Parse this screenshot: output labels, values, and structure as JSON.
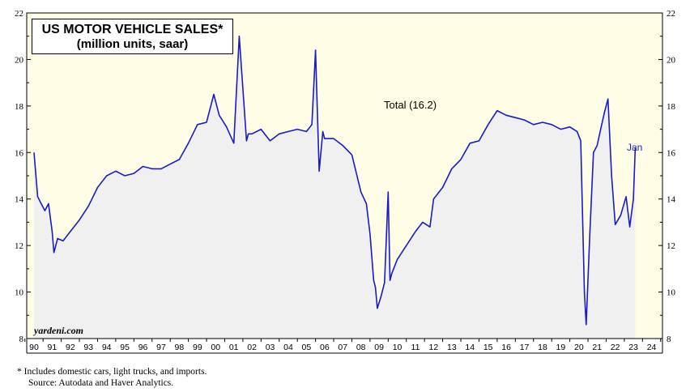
{
  "chart_data": {
    "type": "line",
    "title": "US MOTOR VEHICLE SALES*",
    "subtitle": "(million units, saar)",
    "series": [
      {
        "name": "Total (16.2)",
        "color": "#1a1acc",
        "x": [
          1990.0,
          1990.2,
          1990.4,
          1990.6,
          1990.8,
          1991.0,
          1991.1,
          1991.3,
          1991.6,
          1992.0,
          1992.5,
          1993.0,
          1993.5,
          1994.0,
          1994.5,
          1995.0,
          1995.5,
          1996.0,
          1996.5,
          1997.0,
          1997.5,
          1998.0,
          1998.5,
          1999.0,
          1999.5,
          1999.9,
          2000.2,
          2000.6,
          2001.0,
          2001.3,
          2001.7,
          2001.8,
          2002.0,
          2002.5,
          2003.0,
          2003.5,
          2004.0,
          2004.5,
          2005.0,
          2005.3,
          2005.5,
          2005.7,
          2005.9,
          2006.0,
          2006.5,
          2007.0,
          2007.5,
          2008.0,
          2008.3,
          2008.5,
          2008.7,
          2008.8,
          2008.9,
          2009.1,
          2009.3,
          2009.5,
          2009.6,
          2009.7,
          2009.9,
          2010.0,
          2010.5,
          2011.0,
          2011.4,
          2011.8,
          2012.0,
          2012.5,
          2013.0,
          2013.5,
          2014.0,
          2014.5,
          2015.0,
          2015.5,
          2016.0,
          2016.5,
          2017.0,
          2017.5,
          2018.0,
          2018.5,
          2019.0,
          2019.5,
          2019.9,
          2020.1,
          2020.3,
          2020.4,
          2020.6,
          2020.8,
          2021.0,
          2021.2,
          2021.4,
          2021.6,
          2021.8,
          2022.0,
          2022.3,
          2022.6,
          2022.8,
          2023.0,
          2023.1
        ],
        "values": [
          16.0,
          14.1,
          13.8,
          13.5,
          13.8,
          12.6,
          11.7,
          12.3,
          12.2,
          12.6,
          13.1,
          13.7,
          14.5,
          15.0,
          15.2,
          15.0,
          15.1,
          15.4,
          15.3,
          15.3,
          15.5,
          15.7,
          16.4,
          17.2,
          17.3,
          18.5,
          17.6,
          17.1,
          16.4,
          21.0,
          16.5,
          16.8,
          16.8,
          17.0,
          16.5,
          16.8,
          16.9,
          17.0,
          16.9,
          17.2,
          20.4,
          15.2,
          16.9,
          16.6,
          16.6,
          16.3,
          15.9,
          14.3,
          13.8,
          12.5,
          10.5,
          10.2,
          9.3,
          9.8,
          10.4,
          14.3,
          10.5,
          10.8,
          11.2,
          11.4,
          12.0,
          12.6,
          13.0,
          12.8,
          14.0,
          14.5,
          15.3,
          15.7,
          16.4,
          16.5,
          17.2,
          17.8,
          17.6,
          17.5,
          17.4,
          17.2,
          17.3,
          17.2,
          17.0,
          17.1,
          16.9,
          16.5,
          10.0,
          8.6,
          12.5,
          16.0,
          16.3,
          17.0,
          17.7,
          18.3,
          15.0,
          12.9,
          13.3,
          14.1,
          12.8,
          14.0,
          16.2
        ]
      }
    ],
    "series_label": "Total (16.2)",
    "last_label": "Jan",
    "ylim": [
      8,
      22
    ],
    "yticks": [
      "8",
      "10",
      "12",
      "14",
      "16",
      "18",
      "20",
      "22"
    ],
    "xlim": [
      1989.6,
      2024.6
    ],
    "xtick_labels": [
      "90",
      "91",
      "92",
      "93",
      "94",
      "95",
      "96",
      "97",
      "98",
      "99",
      "00",
      "01",
      "02",
      "03",
      "04",
      "05",
      "06",
      "07",
      "08",
      "09",
      "10",
      "11",
      "12",
      "13",
      "14",
      "15",
      "16",
      "17",
      "18",
      "19",
      "20",
      "21",
      "22",
      "23",
      "24"
    ],
    "plot_background": "#fffde6",
    "fill_color": "#f0f0f0",
    "footnote": "*  Includes domestic cars, light trucks, and imports.",
    "source": "Source: Autodata and Haver Analytics.",
    "watermark": "yardeni.com"
  }
}
